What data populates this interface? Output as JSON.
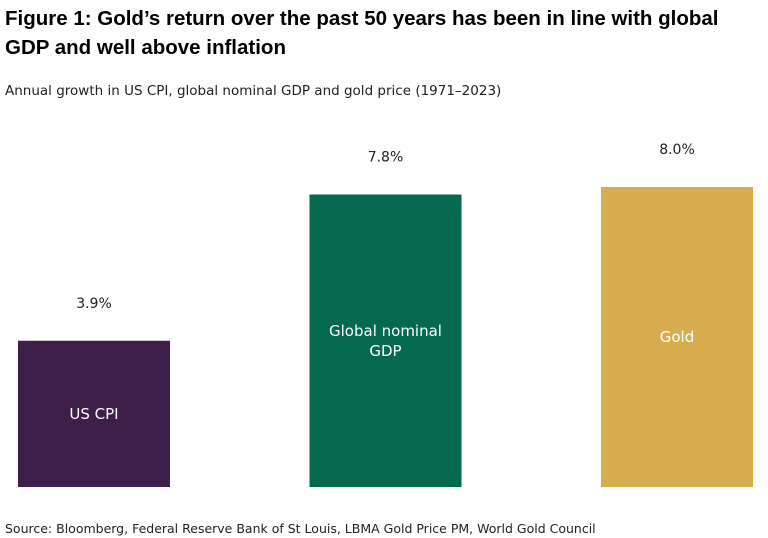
{
  "title": "Figure 1: Gold’s return over the past 50 years has been in line with global GDP and well above inflation",
  "subtitle": "Annual growth in US CPI, global nominal GDP and gold price (1971–2023)",
  "source": "Source: Bloomberg, Federal Reserve Bank of St Louis, LBMA Gold Price PM, World Gold Council",
  "chart_data": {
    "type": "bar",
    "title": "Figure 1: Gold’s return over the past 50 years has been in line with global GDP and well above inflation",
    "subtitle": "Annual growth in US CPI, global nominal GDP and gold price (1971–2023)",
    "xlabel": "",
    "ylabel": "",
    "ylim": [
      0,
      8.0
    ],
    "grid": false,
    "legend": "none",
    "unit": "%",
    "categories": [
      "US CPI",
      "Global nominal GDP",
      "Gold"
    ],
    "category_lines": [
      [
        "US CPI"
      ],
      [
        "Global nominal",
        "GDP"
      ],
      [
        "Gold"
      ]
    ],
    "values": [
      3.9,
      7.8,
      8.0
    ],
    "value_labels": [
      "3.9%",
      "7.8%",
      "8.0%"
    ],
    "colors": [
      "#3d1f4a",
      "#04694e",
      "#d6ac4e"
    ]
  }
}
